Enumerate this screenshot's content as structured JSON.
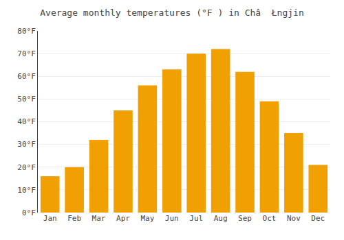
{
  "chart_data": {
    "type": "bar",
    "title": "Average monthly temperatures (°F ) in Châ  Łngjin",
    "categories": [
      "Jan",
      "Feb",
      "Mar",
      "Apr",
      "May",
      "Jun",
      "Jul",
      "Aug",
      "Sep",
      "Oct",
      "Nov",
      "Dec"
    ],
    "values": [
      16,
      20,
      32,
      45,
      56,
      63,
      70,
      72,
      62,
      49,
      35,
      21
    ],
    "color": "#F0A000",
    "ylim": [
      0,
      80
    ],
    "yticks": [
      {
        "value": 0,
        "label": "0°F"
      },
      {
        "value": 10,
        "label": "10°F"
      },
      {
        "value": 20,
        "label": "20°F"
      },
      {
        "value": 30,
        "label": "30°F"
      },
      {
        "value": 40,
        "label": "40°F"
      },
      {
        "value": 50,
        "label": "50°F"
      },
      {
        "value": 60,
        "label": "60°F"
      },
      {
        "value": 70,
        "label": "70°F"
      },
      {
        "value": 80,
        "label": "80°F"
      }
    ],
    "grid": true
  }
}
